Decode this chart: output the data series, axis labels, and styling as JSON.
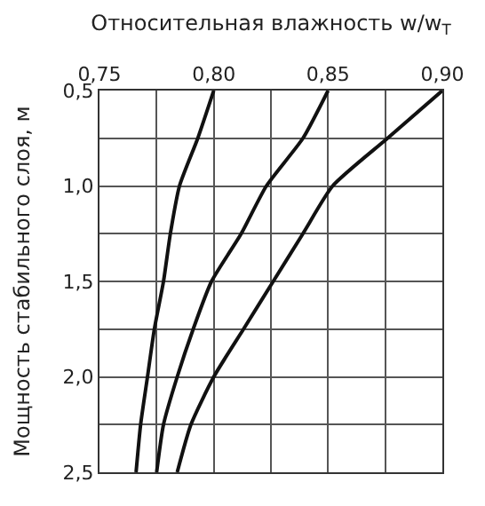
{
  "chart_data": {
    "type": "line",
    "xlabel": "Относительная влажность w/w$_{T}$",
    "ylabel": "Мощность стабильного слоя, м",
    "xlim": [
      0.75,
      0.9
    ],
    "xticks": [
      {
        "value": 0.75,
        "label": "0,75"
      },
      {
        "value": 0.775,
        "label": null
      },
      {
        "value": 0.8,
        "label": "0,80"
      },
      {
        "value": 0.825,
        "label": null
      },
      {
        "value": 0.85,
        "label": "0,85"
      },
      {
        "value": 0.875,
        "label": null
      },
      {
        "value": 0.9,
        "label": "0,90"
      }
    ],
    "ylim": [
      2.5,
      0.5
    ],
    "yticks": [
      {
        "value": 0.5,
        "label": "0,5"
      },
      {
        "value": 0.75,
        "label": null
      },
      {
        "value": 1.0,
        "label": "1,0"
      },
      {
        "value": 1.25,
        "label": null
      },
      {
        "value": 1.5,
        "label": "1,5"
      },
      {
        "value": 1.75,
        "label": null
      },
      {
        "value": 2.0,
        "label": "2,0"
      },
      {
        "value": 2.25,
        "label": null
      },
      {
        "value": 2.5,
        "label": "2,5"
      }
    ],
    "grid": true,
    "marker": "none",
    "line_style": "solid",
    "series": [
      {
        "color": "#111111",
        "x": [
          0.8,
          0.793,
          0.785,
          0.781,
          0.778,
          0.774,
          0.771,
          0.768,
          0.766
        ],
        "values": [
          0.5,
          0.75,
          1.0,
          1.25,
          1.5,
          1.75,
          2.0,
          2.25,
          2.5
        ]
      },
      {
        "color": "#111111",
        "x": [
          0.85,
          0.839,
          0.823,
          0.812,
          0.799,
          0.791,
          0.784,
          0.778,
          0.775
        ],
        "values": [
          0.5,
          0.75,
          1.0,
          1.25,
          1.5,
          1.75,
          2.0,
          2.25,
          2.5
        ]
      },
      {
        "color": "#111111",
        "x": [
          0.9,
          0.876,
          0.852,
          0.839,
          0.826,
          0.813,
          0.8,
          0.79,
          0.784
        ],
        "values": [
          0.5,
          0.75,
          1.0,
          1.25,
          1.5,
          1.75,
          2.0,
          2.25,
          2.5
        ]
      }
    ]
  }
}
